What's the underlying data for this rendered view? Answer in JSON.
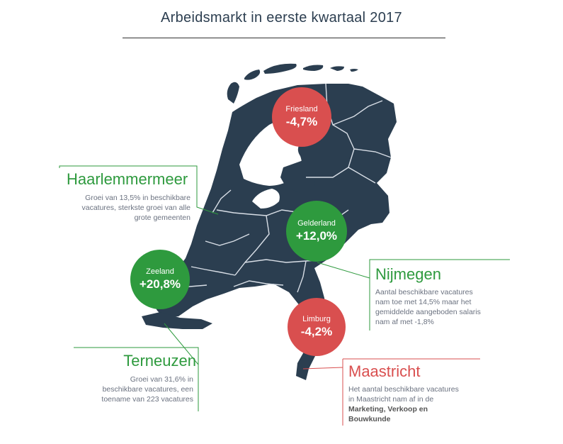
{
  "title": "Arbeidsmarkt  in eerste kwartaal 2017",
  "colors": {
    "map": "#2b3e50",
    "border": "#d8dee6",
    "red": "#d94f4f",
    "green": "#2e9a3e",
    "text": "#6b7280"
  },
  "bubbles": {
    "friesland": {
      "name": "Friesland",
      "value": "-4,7%"
    },
    "gelderland": {
      "name": "Gelderland",
      "value": "+12,0%"
    },
    "zeeland": {
      "name": "Zeeland",
      "value": "+20,8%"
    },
    "limburg": {
      "name": "Limburg",
      "value": "-4,2%"
    }
  },
  "callouts": {
    "haarlemmermeer": {
      "title": "Haarlemmermeer",
      "line1": "Groei van 13,5% in beschikbare",
      "line2": "vacatures, sterkste groei van alle",
      "line3": "grote gemeenten"
    },
    "nijmegen": {
      "title": "Nijmegen",
      "line1": "Aantal beschikbare vacatures",
      "line2": "nam toe met 14,5% maar het",
      "line3": "gemiddelde aangeboden salaris",
      "line4": "nam af met -1,8%"
    },
    "terneuzen": {
      "title": "Terneuzen",
      "line1": "Groei van 31,6% in",
      "line2": "beschikbare vacatures, een",
      "line3": "toename van 223 vacatures"
    },
    "maastricht": {
      "title": "Maastricht",
      "line1": "Het aantal beschikbare vacatures",
      "line2": "in Maastricht nam af in de",
      "line3": "Marketing, Verkoop en",
      "line4": "Bouwkunde"
    }
  }
}
